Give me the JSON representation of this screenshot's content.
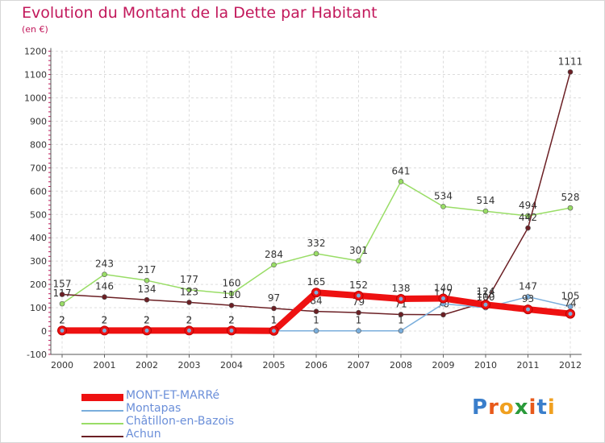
{
  "title": "Evolution du Montant de la Dette par Habitant",
  "subtitle": "(en €)",
  "logo": "Proxiti",
  "chart_data": {
    "type": "line",
    "x": [
      "2000",
      "2001",
      "2002",
      "2003",
      "2004",
      "2005",
      "2006",
      "2007",
      "2008",
      "2009",
      "2010",
      "2011",
      "2012"
    ],
    "ylim": [
      -100,
      1200
    ],
    "yticks": [
      -100,
      0,
      100,
      200,
      300,
      400,
      500,
      600,
      700,
      800,
      900,
      1000,
      1100,
      1200
    ],
    "grid": true,
    "legend_position": "bottom-left",
    "series": [
      {
        "name": "Châtillon-en-Bazois",
        "color": "#99dd66",
        "values": [
          117,
          243,
          217,
          177,
          160,
          284,
          332,
          301,
          641,
          534,
          514,
          494,
          528
        ]
      },
      {
        "name": "Achun",
        "color": "#6b1f24",
        "values": [
          157,
          146,
          134,
          123,
          110,
          97,
          84,
          79,
          71,
          70,
          124,
          442,
          1111
        ]
      },
      {
        "name": "Montapas",
        "color": "#7aaedc",
        "values": [
          2,
          2,
          2,
          2,
          2,
          1,
          1,
          1,
          1,
          117,
          100,
          147,
          105
        ]
      },
      {
        "name": "MONT-ET-MARRé",
        "color": "#ee1111",
        "values": [
          2,
          2,
          2,
          2,
          2,
          1,
          165,
          152,
          138,
          140,
          113,
          93,
          74
        ]
      }
    ],
    "legend_order": [
      "MONT-ET-MARRé",
      "Montapas",
      "Châtillon-en-Bazois",
      "Achun"
    ]
  }
}
